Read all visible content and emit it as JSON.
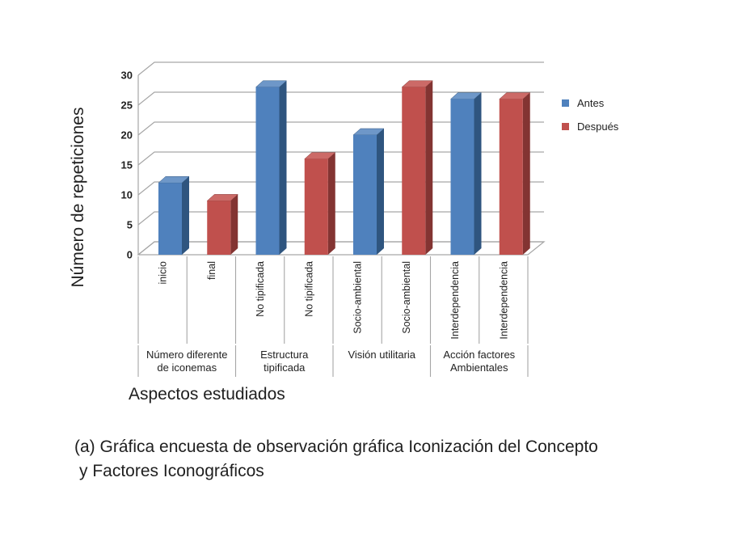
{
  "page": {
    "background": "#ffffff"
  },
  "caption": {
    "line1": "(a)  Gráfica encuesta de observación gráfica Iconización del Concepto",
    "line2": "y Factores Iconográficos"
  },
  "chart_data": {
    "type": "bar",
    "style": "3d-clustered-column",
    "title": "",
    "xlabel": "Aspectos estudiados",
    "ylabel": "Número de repeticiones",
    "ylim": [
      0,
      30
    ],
    "ytick_step": 5,
    "yticks": [
      0,
      5,
      10,
      15,
      20,
      25,
      30
    ],
    "grid": true,
    "grid_color": "#a6a6a6",
    "legend_position": "right",
    "categories": [
      "inicio",
      "final",
      "No tipificada",
      "No tipificada",
      "Socio-ambiental",
      "Socio-ambiental",
      "Interdependencia",
      "Interdependencia"
    ],
    "groups": [
      {
        "label_lines": [
          "Número diferente",
          "de iconemas"
        ]
      },
      {
        "label_lines": [
          "Estructura",
          "tipificada"
        ]
      },
      {
        "label_lines": [
          "Visión utilitaria"
        ]
      },
      {
        "label_lines": [
          "Acción factores",
          "Ambientales"
        ]
      }
    ],
    "series": [
      {
        "name": "Antes",
        "color": "#4f81bd",
        "color_top": "#6e97c8",
        "color_side": "#2f557f",
        "values": [
          12,
          28,
          20,
          26
        ]
      },
      {
        "name": "Después",
        "color": "#c0504d",
        "color_top": "#cc6a67",
        "color_side": "#833432",
        "values": [
          9,
          16,
          28,
          26
        ]
      }
    ]
  }
}
